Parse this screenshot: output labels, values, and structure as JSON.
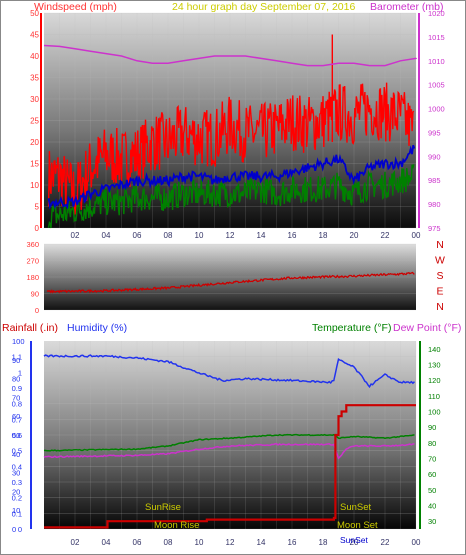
{
  "header": {
    "left_label": "Windspeed (mph)",
    "center_label": "24 hour graph day   September 07, 2016",
    "right_label": "Barometer (mb)"
  },
  "footer": {
    "rain_label": "Rainfall (.in)",
    "humidity_label": "Humidity (%)",
    "temperature_label": "Temperature (°F)",
    "dewpoint_label": "Dew Point (°F)",
    "sunrise_label": "SunRise",
    "sunset_label": "SunSet",
    "moonrise_label": "Moon Rise",
    "moonset_label": "Moon Set",
    "sunset_axis_text": "SunSet"
  },
  "colors": {
    "wind": "#ff0000",
    "wind_avg": "#0000cc",
    "wind_green": "#008000",
    "barometer": "#cc33cc",
    "direction": "#cc0000",
    "humidity": "#2233ee",
    "temperature": "#008000",
    "dewpoint": "#cc33cc",
    "rain": "#cc0000",
    "sun_moon_text": "#cccc00",
    "header_center": "#cccc00"
  },
  "chart_data": [
    {
      "type": "line",
      "title": "24 hour graph day   September 07, 2016",
      "ylabel": "Windspeed (mph)",
      "y2label": "Barometer (mb)",
      "ylim": [
        0,
        50
      ],
      "y2lim": [
        975,
        1020
      ],
      "yticks": [
        "0",
        "5",
        "10",
        "15",
        "20",
        "25",
        "30",
        "35",
        "40",
        "45",
        "50"
      ],
      "y2ticks": [
        "975",
        "980",
        "985",
        "990",
        "995",
        "1000",
        "1005",
        "1010",
        "1015",
        "1020"
      ],
      "xticks": [
        "02",
        "04",
        "06",
        "08",
        "10",
        "12",
        "14",
        "16",
        "18",
        "20",
        "22",
        "00"
      ],
      "x_hours": [
        1,
        2,
        3,
        4,
        5,
        6,
        7,
        8,
        9,
        10,
        11,
        12,
        13,
        14,
        15,
        16,
        17,
        18,
        19,
        20,
        21,
        22,
        23,
        24
      ],
      "series": [
        {
          "name": "Windspeed (mph)",
          "values": [
            12,
            8,
            14,
            17,
            16,
            17,
            20,
            20,
            22,
            21,
            21,
            24,
            22,
            22,
            23,
            25,
            24,
            25,
            27,
            26,
            28,
            27,
            26,
            22
          ]
        },
        {
          "name": "",
          "values": [
            6,
            6,
            8,
            9,
            10,
            11,
            11,
            11,
            12,
            12,
            11,
            12,
            12,
            12,
            12,
            13,
            14,
            15,
            16,
            11,
            14,
            15,
            15,
            19
          ]
        },
        {
          "name": "",
          "values": [
            3,
            4,
            5,
            6,
            6,
            7,
            7,
            7,
            8,
            8,
            8,
            8,
            8,
            9,
            8,
            9,
            9,
            9,
            10,
            8,
            10,
            10,
            11,
            12
          ]
        },
        {
          "name": "Barometer (mb)",
          "values": [
            1013,
            1012.5,
            1012,
            1011.5,
            1011,
            1010,
            1009.5,
            1009.5,
            1010,
            1010.5,
            1011,
            1011,
            1011,
            1010.5,
            1010,
            1009.5,
            1009,
            1009,
            1009.5,
            1009.5,
            1009,
            1009,
            1010,
            1010.5
          ]
        }
      ]
    },
    {
      "type": "line",
      "yticks": [
        "0",
        "90",
        "180",
        "270",
        "360"
      ],
      "ylim": [
        0,
        360
      ],
      "direction_labels": [
        "N",
        "W",
        "S",
        "E",
        "N"
      ],
      "series": [
        {
          "name": "Wind direction",
          "x_hours": [
            0,
            4,
            8,
            12,
            16,
            20,
            24
          ],
          "values": [
            100,
            105,
            120,
            150,
            175,
            185,
            200
          ]
        }
      ]
    },
    {
      "type": "line",
      "rain_ticks": [
        "0",
        "0.1",
        "0.2",
        "0.3",
        "0.4",
        "0.5",
        "0.6",
        "0.7",
        "0.8",
        "0.9",
        "1",
        "1.1"
      ],
      "humidity_ticks": [
        "0",
        "10",
        "20",
        "30",
        "40",
        "50",
        "60",
        "70",
        "80",
        "90",
        "100"
      ],
      "temp_ticks": [
        "30",
        "40",
        "50",
        "60",
        "70",
        "80",
        "90",
        "100",
        "110",
        "120",
        "130",
        "140"
      ],
      "rain_lim": [
        0,
        1.2
      ],
      "humidity_lim": [
        0,
        100
      ],
      "temp_lim": [
        25,
        145
      ],
      "xticks": [
        "02",
        "04",
        "06",
        "08",
        "10",
        "12",
        "14",
        "16",
        "18",
        "20",
        "22",
        "00"
      ],
      "series": [
        {
          "name": "Humidity (%)",
          "x_hours": [
            0,
            4,
            6,
            8,
            10,
            11.5,
            13,
            16,
            18.5,
            18.7,
            19,
            20,
            21,
            22,
            23,
            24
          ],
          "values": [
            92,
            92,
            91,
            89,
            83,
            79,
            80,
            79,
            78,
            79,
            90,
            86,
            76,
            82,
            78,
            78
          ]
        },
        {
          "name": "Temperature (°F)",
          "x_hours": [
            0,
            6,
            8,
            10,
            12,
            15,
            18.7,
            19,
            20,
            22,
            24
          ],
          "values": [
            75,
            76,
            78,
            82,
            83,
            85,
            85,
            83,
            84,
            83,
            85
          ]
        },
        {
          "name": "Dew Point (°F)",
          "x_hours": [
            0,
            6,
            8,
            10,
            12,
            15,
            18.7,
            19,
            19.5,
            20,
            22,
            24
          ],
          "values": [
            71,
            72,
            73,
            76,
            78,
            79,
            79,
            70,
            76,
            78,
            78,
            79
          ]
        },
        {
          "name": "Rainfall (.in)",
          "x_hours": [
            0,
            4,
            4.1,
            10,
            10.5,
            15,
            18.7,
            18.8,
            19,
            19.2,
            19.5,
            22.5,
            24
          ],
          "values": [
            0.01,
            0.01,
            0.05,
            0.05,
            0.06,
            0.06,
            0.07,
            0.6,
            0.72,
            0.75,
            0.79,
            0.79,
            0.79
          ]
        }
      ]
    }
  ]
}
